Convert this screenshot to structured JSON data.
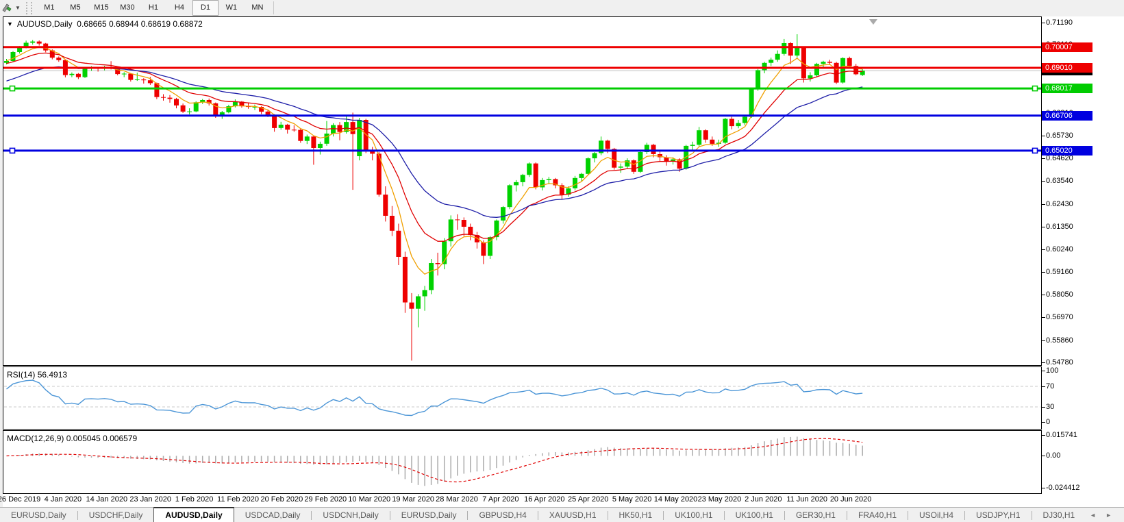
{
  "toolbar": {
    "tool_icon": "chart-tools-icon",
    "timeframes": [
      "M1",
      "M5",
      "M15",
      "M30",
      "H1",
      "H4",
      "D1",
      "W1",
      "MN"
    ],
    "active_timeframe": "D1"
  },
  "icons": {
    "collapse_triangle": "▼",
    "dropdown_caret": "▼",
    "scroll_left": "◄",
    "scroll_right": "►"
  },
  "title": {
    "symbol": "AUDUSD,Daily",
    "ohlc": "0.68665 0.68944 0.68619 0.68872"
  },
  "chart_data": {
    "type": "candlestick",
    "symbol": "AUDUSD",
    "timeframe": "Daily",
    "x_labels": [
      "26 Dec 2019",
      "4 Jan 2020",
      "14 Jan 2020",
      "23 Jan 2020",
      "1 Feb 2020",
      "11 Feb 2020",
      "20 Feb 2020",
      "29 Feb 2020",
      "10 Mar 2020",
      "19 Mar 2020",
      "28 Mar 2020",
      "7 Apr 2020",
      "16 Apr 2020",
      "25 Apr 2020",
      "5 May 2020",
      "14 May 2020",
      "23 May 2020",
      "2 Jun 2020",
      "11 Jun 2020",
      "20 Jun 2020"
    ],
    "price_axis_ticks": [
      "0.71190",
      "0.70110",
      "0.69000",
      "0.67920",
      "0.66810",
      "0.65730",
      "0.64620",
      "0.63540",
      "0.62430",
      "0.61350",
      "0.60240",
      "0.59160",
      "0.58050",
      "0.56970",
      "0.55860",
      "0.54780"
    ],
    "price_axis_range": [
      0.5478,
      0.7119
    ],
    "colors": {
      "up_candle": "#00D200",
      "down_candle": "#EE0000",
      "current_price_line": "#C0C0C0",
      "background": "#FFFFFF",
      "shift_marker": "#AAAAAA"
    },
    "current_price": {
      "value": 0.68872,
      "label": "0.68872",
      "label_bg": "#000000"
    },
    "horizontal_levels": [
      {
        "price": 0.70007,
        "label": "0.70007",
        "color": "#EE0000",
        "selected": false
      },
      {
        "price": 0.6901,
        "label": "0.69010",
        "color": "#EE0000",
        "selected": false
      },
      {
        "price": 0.68017,
        "label": "0.68017",
        "color": "#00CC00",
        "selected": true
      },
      {
        "price": 0.66706,
        "label": "0.66706",
        "color": "#0000E0",
        "selected": false
      },
      {
        "price": 0.6502,
        "label": "0.65020",
        "color": "#0000E0",
        "selected": true
      }
    ],
    "moving_averages": [
      {
        "name": "ma-fast",
        "type": "ema",
        "period": 6,
        "seed": 0.6935,
        "color": "#F0A000"
      },
      {
        "name": "ma-mid",
        "type": "ema",
        "period": 13,
        "seed": 0.692,
        "color": "#E00000"
      },
      {
        "name": "ma-slow",
        "type": "ema",
        "period": 26,
        "seed": 0.683,
        "color": "#1F1FA8"
      }
    ],
    "candles": [
      [
        0.6925,
        0.6944,
        0.6918,
        0.6934
      ],
      [
        0.6934,
        0.6982,
        0.6928,
        0.6977
      ],
      [
        0.6977,
        0.7006,
        0.697,
        0.7
      ],
      [
        0.7,
        0.7032,
        0.6995,
        0.7022
      ],
      [
        0.7022,
        0.7035,
        0.7013,
        0.7028
      ],
      [
        0.7028,
        0.7033,
        0.7008,
        0.7018
      ],
      [
        0.7018,
        0.7021,
        0.6976,
        0.6985
      ],
      [
        0.6985,
        0.699,
        0.6942,
        0.695
      ],
      [
        0.695,
        0.6956,
        0.693,
        0.6938
      ],
      [
        0.6938,
        0.6942,
        0.6855,
        0.6866
      ],
      [
        0.6866,
        0.6879,
        0.6856,
        0.6872
      ],
      [
        0.6872,
        0.6876,
        0.6847,
        0.6856
      ],
      [
        0.6856,
        0.6905,
        0.6852,
        0.69
      ],
      [
        0.69,
        0.6909,
        0.6887,
        0.6902
      ],
      [
        0.6902,
        0.6906,
        0.6883,
        0.6898
      ],
      [
        0.6898,
        0.6911,
        0.6889,
        0.6903
      ],
      [
        0.6903,
        0.6933,
        0.6893,
        0.6896
      ],
      [
        0.6896,
        0.6899,
        0.6865,
        0.6871
      ],
      [
        0.6871,
        0.688,
        0.6856,
        0.6873
      ],
      [
        0.6873,
        0.6876,
        0.6835,
        0.6843
      ],
      [
        0.6843,
        0.6878,
        0.6838,
        0.6845
      ],
      [
        0.6845,
        0.6851,
        0.6825,
        0.6841
      ],
      [
        0.6841,
        0.6857,
        0.6819,
        0.6827
      ],
      [
        0.6827,
        0.683,
        0.675,
        0.676
      ],
      [
        0.676,
        0.6774,
        0.6743,
        0.6757
      ],
      [
        0.6757,
        0.677,
        0.6733,
        0.6751
      ],
      [
        0.6751,
        0.6756,
        0.6706,
        0.672
      ],
      [
        0.672,
        0.6729,
        0.6683,
        0.669
      ],
      [
        0.669,
        0.6706,
        0.6677,
        0.6691
      ],
      [
        0.6691,
        0.674,
        0.6687,
        0.6735
      ],
      [
        0.6735,
        0.6751,
        0.6727,
        0.6746
      ],
      [
        0.6746,
        0.6753,
        0.6719,
        0.673
      ],
      [
        0.673,
        0.6734,
        0.666,
        0.6671
      ],
      [
        0.6671,
        0.6693,
        0.6655,
        0.6687
      ],
      [
        0.6687,
        0.6723,
        0.6682,
        0.6716
      ],
      [
        0.6716,
        0.6749,
        0.671,
        0.6738
      ],
      [
        0.6738,
        0.6741,
        0.6709,
        0.6716
      ],
      [
        0.6716,
        0.6731,
        0.6704,
        0.6713
      ],
      [
        0.6713,
        0.6724,
        0.6698,
        0.6713
      ],
      [
        0.6713,
        0.6716,
        0.6678,
        0.669
      ],
      [
        0.669,
        0.6697,
        0.6664,
        0.6675
      ],
      [
        0.6675,
        0.6678,
        0.6593,
        0.6611
      ],
      [
        0.6611,
        0.6641,
        0.6603,
        0.6627
      ],
      [
        0.6627,
        0.6631,
        0.6584,
        0.6603
      ],
      [
        0.6603,
        0.6624,
        0.6593,
        0.6602
      ],
      [
        0.6602,
        0.6607,
        0.654,
        0.6549
      ],
      [
        0.6549,
        0.6579,
        0.6534,
        0.657
      ],
      [
        0.657,
        0.6572,
        0.6434,
        0.6515
      ],
      [
        0.6515,
        0.6545,
        0.6483,
        0.6535
      ],
      [
        0.6535,
        0.6645,
        0.6525,
        0.6584
      ],
      [
        0.6584,
        0.6634,
        0.657,
        0.6625
      ],
      [
        0.6625,
        0.664,
        0.6552,
        0.6592
      ],
      [
        0.6592,
        0.6668,
        0.6584,
        0.664
      ],
      [
        0.664,
        0.6685,
        0.6313,
        0.6582
      ],
      [
        0.6475,
        0.666,
        0.6455,
        0.665
      ],
      [
        0.665,
        0.6655,
        0.649,
        0.65
      ],
      [
        0.65,
        0.652,
        0.6455,
        0.6487
      ],
      [
        0.6487,
        0.6495,
        0.628,
        0.629
      ],
      [
        0.629,
        0.633,
        0.616,
        0.6188
      ],
      [
        0.6188,
        0.6235,
        0.609,
        0.6116
      ],
      [
        0.6116,
        0.615,
        0.595,
        0.599
      ],
      [
        0.599,
        0.6015,
        0.572,
        0.577
      ],
      [
        0.577,
        0.5815,
        0.549,
        0.574
      ],
      [
        0.574,
        0.581,
        0.565,
        0.58
      ],
      [
        0.58,
        0.585,
        0.573,
        0.583
      ],
      [
        0.583,
        0.598,
        0.581,
        0.596
      ],
      [
        0.596,
        0.601,
        0.59,
        0.5955
      ],
      [
        0.5955,
        0.608,
        0.593,
        0.6065
      ],
      [
        0.6065,
        0.619,
        0.604,
        0.617
      ],
      [
        0.617,
        0.6195,
        0.612,
        0.6168
      ],
      [
        0.6168,
        0.618,
        0.609,
        0.6135
      ],
      [
        0.6135,
        0.615,
        0.607,
        0.6095
      ],
      [
        0.6095,
        0.611,
        0.603,
        0.606
      ],
      [
        0.606,
        0.607,
        0.5955,
        0.5995
      ],
      [
        0.5995,
        0.609,
        0.598,
        0.6085
      ],
      [
        0.6085,
        0.617,
        0.607,
        0.6165
      ],
      [
        0.6165,
        0.6235,
        0.615,
        0.623
      ],
      [
        0.623,
        0.634,
        0.622,
        0.6335
      ],
      [
        0.6335,
        0.636,
        0.6305,
        0.635
      ],
      [
        0.635,
        0.639,
        0.633,
        0.6385
      ],
      [
        0.6385,
        0.6445,
        0.6375,
        0.644
      ],
      [
        0.644,
        0.6445,
        0.6315,
        0.6325
      ],
      [
        0.6325,
        0.637,
        0.631,
        0.636
      ],
      [
        0.636,
        0.6375,
        0.634,
        0.6365
      ],
      [
        0.6365,
        0.637,
        0.632,
        0.6335
      ],
      [
        0.6335,
        0.6345,
        0.6265,
        0.629
      ],
      [
        0.629,
        0.633,
        0.628,
        0.632
      ],
      [
        0.632,
        0.638,
        0.631,
        0.637
      ],
      [
        0.637,
        0.6395,
        0.6355,
        0.639
      ],
      [
        0.639,
        0.647,
        0.6385,
        0.6465
      ],
      [
        0.6465,
        0.6495,
        0.6445,
        0.649
      ],
      [
        0.649,
        0.657,
        0.648,
        0.655
      ],
      [
        0.655,
        0.6555,
        0.649,
        0.651
      ],
      [
        0.651,
        0.6515,
        0.641,
        0.642
      ],
      [
        0.642,
        0.644,
        0.6395,
        0.6425
      ],
      [
        0.6425,
        0.6465,
        0.6415,
        0.6455
      ],
      [
        0.6455,
        0.646,
        0.639,
        0.64
      ],
      [
        0.64,
        0.65,
        0.6395,
        0.6495
      ],
      [
        0.6495,
        0.654,
        0.6485,
        0.653
      ],
      [
        0.653,
        0.6535,
        0.647,
        0.6485
      ],
      [
        0.6485,
        0.65,
        0.645,
        0.647
      ],
      [
        0.647,
        0.648,
        0.643,
        0.645
      ],
      [
        0.645,
        0.647,
        0.6435,
        0.646
      ],
      [
        0.646,
        0.6465,
        0.64,
        0.6415
      ],
      [
        0.6415,
        0.653,
        0.641,
        0.6525
      ],
      [
        0.6525,
        0.6545,
        0.6505,
        0.653
      ],
      [
        0.653,
        0.6616,
        0.652,
        0.66
      ],
      [
        0.66,
        0.6605,
        0.654,
        0.6555
      ],
      [
        0.6555,
        0.657,
        0.6525,
        0.6535
      ],
      [
        0.6535,
        0.6555,
        0.652,
        0.654
      ],
      [
        0.654,
        0.666,
        0.6535,
        0.6655
      ],
      [
        0.6655,
        0.6665,
        0.6605,
        0.662
      ],
      [
        0.662,
        0.665,
        0.661,
        0.6635
      ],
      [
        0.6635,
        0.6675,
        0.6625,
        0.6665
      ],
      [
        0.6665,
        0.6805,
        0.666,
        0.68
      ],
      [
        0.68,
        0.6895,
        0.679,
        0.689
      ],
      [
        0.689,
        0.693,
        0.6875,
        0.6925
      ],
      [
        0.6925,
        0.695,
        0.691,
        0.694
      ],
      [
        0.694,
        0.6985,
        0.693,
        0.6968
      ],
      [
        0.6968,
        0.704,
        0.696,
        0.702
      ],
      [
        0.702,
        0.7025,
        0.692,
        0.696
      ],
      [
        0.696,
        0.7063,
        0.695,
        0.7
      ],
      [
        0.7,
        0.7005,
        0.683,
        0.685
      ],
      [
        0.685,
        0.688,
        0.6835,
        0.6865
      ],
      [
        0.6865,
        0.6925,
        0.6855,
        0.692
      ],
      [
        0.692,
        0.6935,
        0.6905,
        0.693
      ],
      [
        0.693,
        0.694,
        0.6915,
        0.6925
      ],
      [
        0.6925,
        0.693,
        0.6823,
        0.683
      ],
      [
        0.683,
        0.6952,
        0.6825,
        0.6948
      ],
      [
        0.6948,
        0.6955,
        0.69,
        0.691
      ],
      [
        0.691,
        0.692,
        0.6865,
        0.687
      ],
      [
        0.68665,
        0.68944,
        0.68619,
        0.68872
      ]
    ],
    "indicators": {
      "rsi": {
        "name": "RSI(14)",
        "period": 14,
        "current_value": "56.4913",
        "levels": [
          70,
          30
        ],
        "axis_ticks": [
          "100",
          "70",
          "30",
          "0"
        ],
        "line_color": "#4C96D7",
        "level_line_color": "#C8C8C8"
      },
      "macd": {
        "name": "MACD(12,26,9)",
        "fast": 12,
        "slow": 26,
        "signal": 9,
        "macd_value": "0.005045",
        "signal_value": "0.006579",
        "axis_ticks": [
          "0.015741",
          "0.00",
          "-0.024412"
        ],
        "histogram_color": "#ABABAB",
        "signal_color": "#E00000"
      }
    }
  },
  "tabs": {
    "items": [
      {
        "label": "EURUSD,Daily",
        "active": false
      },
      {
        "label": "USDCHF,Daily",
        "active": false
      },
      {
        "label": "AUDUSD,Daily",
        "active": true
      },
      {
        "label": "USDCAD,Daily",
        "active": false
      },
      {
        "label": "USDCNH,Daily",
        "active": false
      },
      {
        "label": "EURUSD,Daily",
        "active": false
      },
      {
        "label": "GBPUSD,H4",
        "active": false
      },
      {
        "label": "XAUUSD,H1",
        "active": false
      },
      {
        "label": "HK50,H1",
        "active": false
      },
      {
        "label": "UK100,H1",
        "active": false
      },
      {
        "label": "UK100,H1",
        "active": false
      },
      {
        "label": "GER30,H1",
        "active": false
      },
      {
        "label": "FRA40,H1",
        "active": false
      },
      {
        "label": "USOil,H4",
        "active": false
      },
      {
        "label": "USDJPY,H1",
        "active": false
      },
      {
        "label": "DJ30,H1",
        "active": false
      }
    ]
  }
}
